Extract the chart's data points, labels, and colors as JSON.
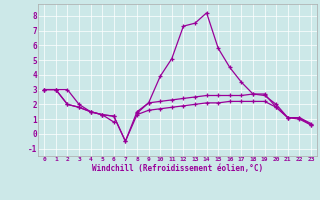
{
  "x": [
    0,
    1,
    2,
    3,
    4,
    5,
    6,
    7,
    8,
    9,
    10,
    11,
    12,
    13,
    14,
    15,
    16,
    17,
    18,
    19,
    20,
    21,
    22,
    23
  ],
  "line1": [
    3.0,
    3.0,
    3.0,
    2.0,
    1.5,
    1.3,
    0.8,
    null,
    1.4,
    2.1,
    3.9,
    5.1,
    7.3,
    7.5,
    8.2,
    5.8,
    4.5,
    3.5,
    2.7,
    2.7,
    1.8,
    1.1,
    1.1,
    0.7
  ],
  "line2": [
    3.0,
    3.0,
    2.0,
    1.8,
    1.5,
    1.3,
    1.2,
    -0.5,
    1.5,
    2.1,
    2.2,
    2.3,
    2.4,
    2.5,
    2.6,
    2.6,
    2.6,
    2.6,
    2.7,
    2.6,
    2.0,
    1.1,
    1.1,
    0.6
  ],
  "line3": [
    3.0,
    3.0,
    2.0,
    1.8,
    1.5,
    1.3,
    1.2,
    -0.5,
    1.3,
    1.6,
    1.7,
    1.8,
    1.9,
    2.0,
    2.1,
    2.1,
    2.2,
    2.2,
    2.2,
    2.2,
    1.8,
    1.1,
    1.0,
    0.6
  ],
  "color": "#990099",
  "bg_color": "#cce8e8",
  "xlabel": "Windchill (Refroidissement éolien,°C)",
  "ylim": [
    -1.5,
    8.8
  ],
  "xlim": [
    -0.5,
    23.5
  ],
  "yticks": [
    -1,
    0,
    1,
    2,
    3,
    4,
    5,
    6,
    7,
    8
  ],
  "xticks": [
    0,
    1,
    2,
    3,
    4,
    5,
    6,
    7,
    8,
    9,
    10,
    11,
    12,
    13,
    14,
    15,
    16,
    17,
    18,
    19,
    20,
    21,
    22,
    23
  ]
}
